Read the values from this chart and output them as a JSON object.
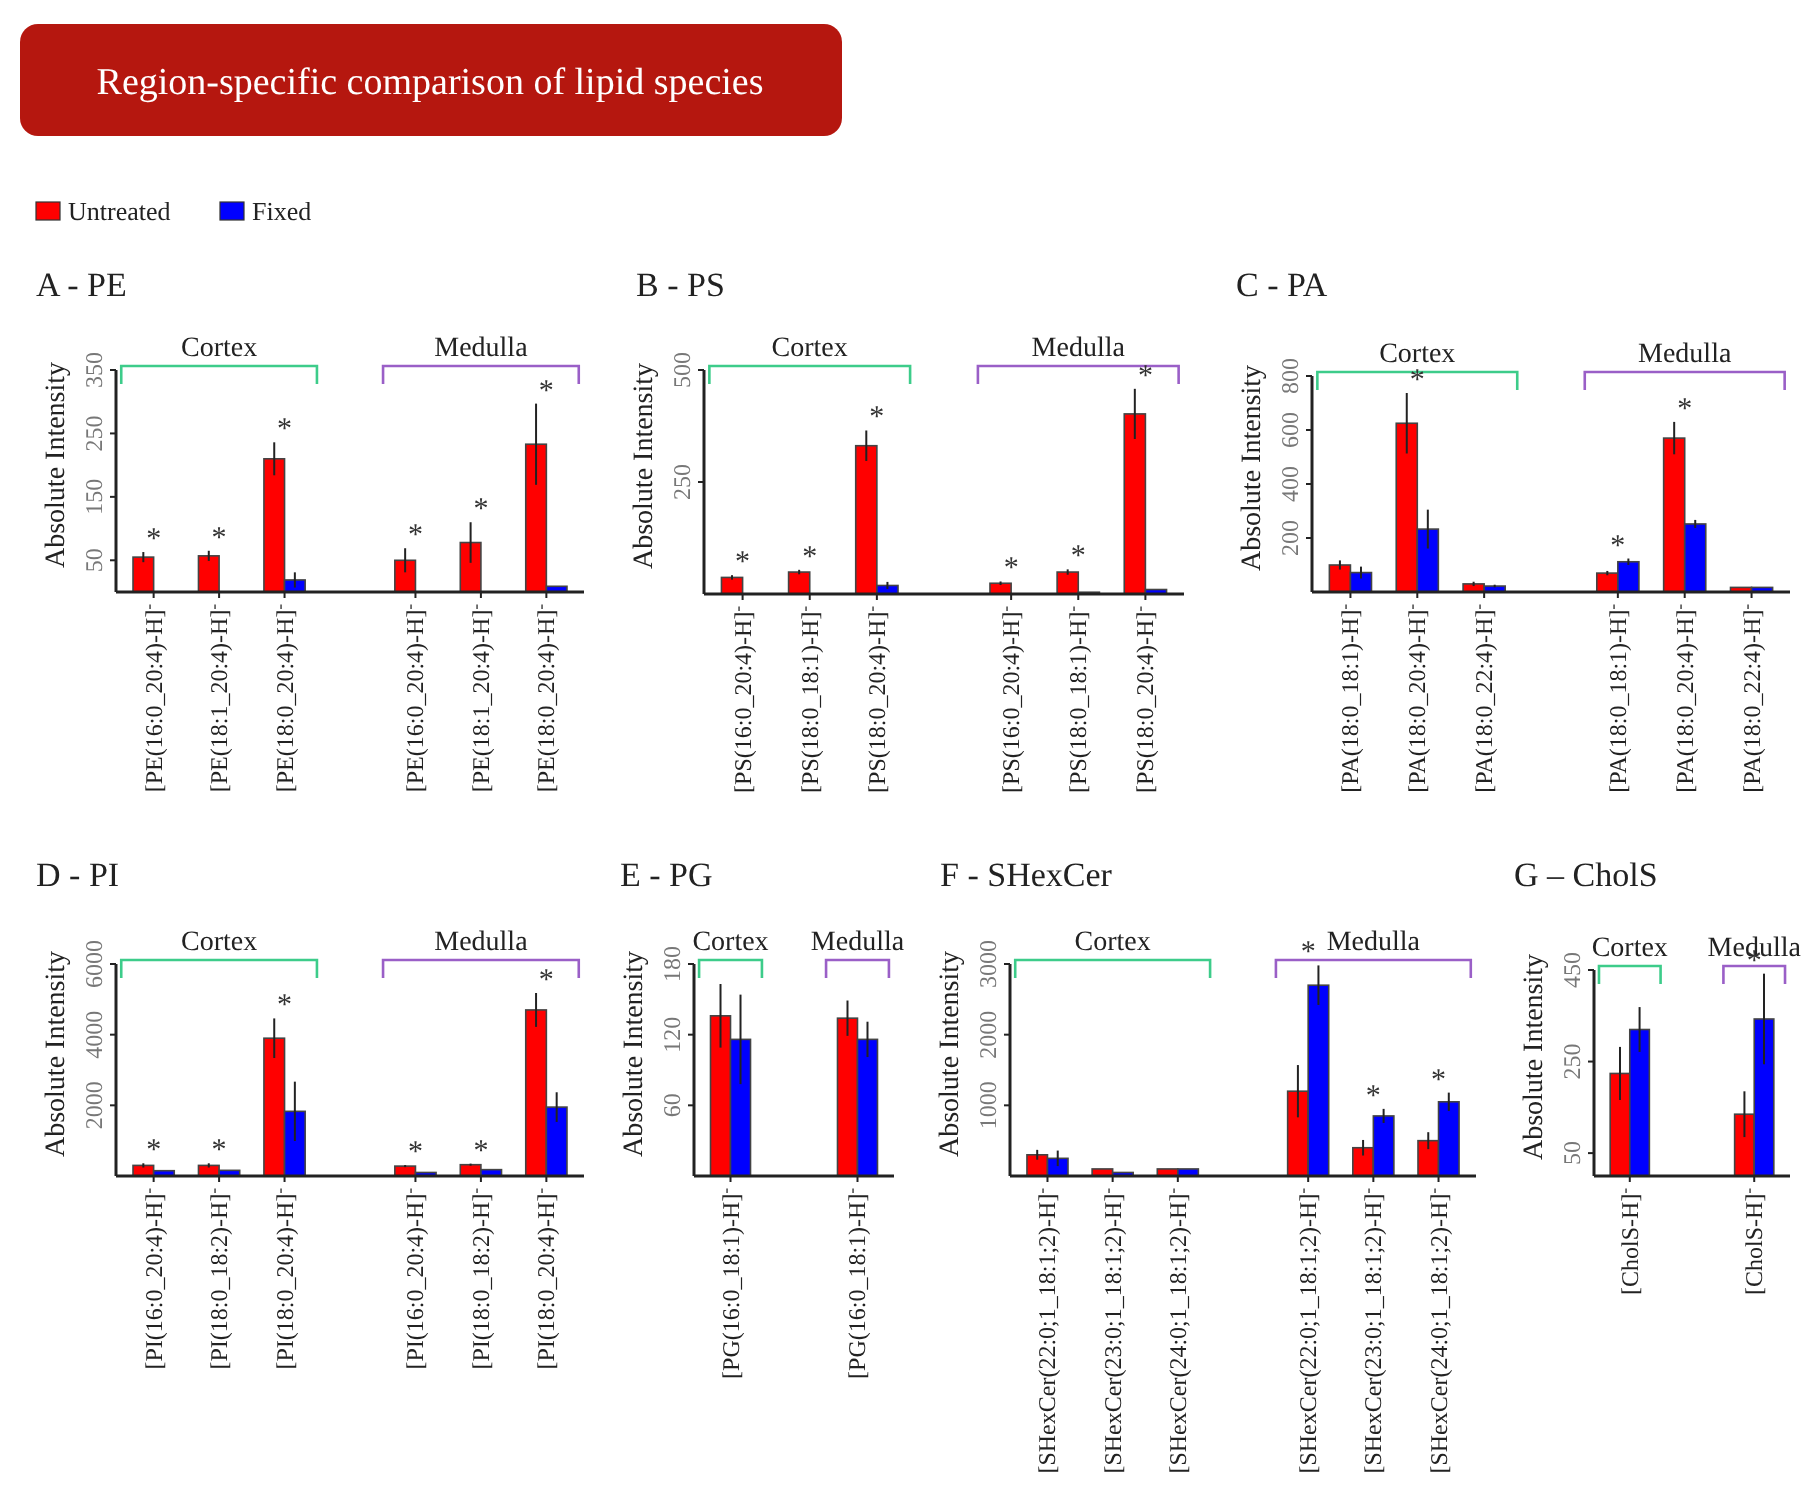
{
  "chart_data": [
    {
      "type": "other",
      "title": "Region-specific comparison of lipid species"
    },
    {
      "type": "bar",
      "title": "A - PE",
      "ylabel": "Absolute Intensity",
      "categories": [
        "[PE(16:0_20:4)-H]$^{-}$",
        "[PE(18:1_20:4)-H]$^{-}$",
        "[PE(18:0_20:4)-H]$^{-}$",
        null,
        "[PE(16:0_20:4)-H]$^{-}$",
        "[PE(18:1_20:4)-H]$^{-}$",
        "[PE(18:0_20:4)-H]$^{-}$"
      ],
      "ylim": [
        0,
        350
      ],
      "yticks": [
        50,
        150,
        250,
        350
      ],
      "legend": "top left",
      "annotations": [
        "Cortex",
        "Medulla"
      ],
      "series": [
        {
          "name": "Untreated",
          "color": "#ff0000",
          "values": [
            55,
            57,
            210,
            null,
            50,
            78,
            233
          ],
          "errors": [
            8,
            8,
            26,
            null,
            19,
            32,
            64
          ],
          "value_labels": [
            "*",
            "*",
            "*",
            null,
            "*",
            "*",
            "*"
          ]
        },
        {
          "name": "Fixed",
          "color": "#0000ff",
          "values": [
            null,
            null,
            19,
            null,
            null,
            null,
            9
          ],
          "errors": [
            null,
            null,
            12,
            null,
            null,
            null,
            null
          ]
        }
      ]
    },
    {
      "type": "bar",
      "title": "B - PS",
      "ylabel": "Absolute Intensity",
      "categories": [
        "[PS(16:0_20:4)-H]$^{-}$",
        "[PS(18:0_18:1)-H]$^{-}$",
        "[PS(18:0_20:4)-H]$^{-}$",
        null,
        "[PS(16:0_20:4)-H]$^{-}$",
        "[PS(18:0_18:1)-H]$^{-}$",
        "[PS(18:0_20:4)-H]$^{-}$"
      ],
      "ylim": [
        0,
        500
      ],
      "yticks": [
        250,
        500
      ],
      "annotations": [
        "Cortex",
        "Medulla"
      ],
      "series": [
        {
          "color": "#ff0000",
          "values": [
            37,
            49,
            331,
            null,
            24,
            49,
            402
          ],
          "errors": [
            5,
            5,
            34,
            null,
            4,
            6,
            56
          ],
          "value_labels": [
            "*",
            "*",
            "*",
            null,
            "*",
            "*",
            "*"
          ]
        },
        {
          "color": "#0000ff",
          "values": [
            null,
            null,
            19,
            null,
            null,
            4,
            10
          ],
          "errors": [
            null,
            null,
            8,
            null,
            null,
            null,
            null
          ]
        }
      ]
    },
    {
      "type": "bar",
      "title": "C - PA",
      "ylabel": "Absolute Intensity",
      "categories": [
        "[PA(18:0_18:1)-H]$^{-}$",
        "[PA(18:0_20:4)-H]$^{-}$",
        "[PA(18:0_22:4)-H]$^{-}$",
        null,
        "[PA(18:0_18:1)-H]$^{-}$",
        "[PA(18:0_20:4)-H]$^{-}$",
        "[PA(18:0_22:4)-H]$^{-}$"
      ],
      "ylim": [
        0,
        800
      ],
      "yticks": [
        200,
        400,
        600,
        800
      ],
      "annotations": [
        "Cortex",
        "Medulla"
      ],
      "series": [
        {
          "color": "#ff0000",
          "values": [
            100,
            625,
            30,
            null,
            70,
            570,
            17
          ],
          "errors": [
            17,
            112,
            8,
            null,
            8,
            60,
            null
          ],
          "value_labels": [
            null,
            "*",
            null,
            null,
            null,
            "*",
            null
          ]
        },
        {
          "color": "#0000ff",
          "values": [
            72,
            233,
            22,
            null,
            112,
            252,
            17
          ],
          "errors": [
            22,
            72,
            5,
            null,
            12,
            15,
            null
          ],
          "value_labels": [
            null,
            null,
            null,
            null,
            "*",
            null,
            null
          ]
        }
      ]
    },
    {
      "type": "bar",
      "title": "D - PI",
      "ylabel": "Absolute Intensity",
      "categories": [
        "[PI(16:0_20:4)-H]$^{-}$",
        "[PI(18:0_18:2)-H]$^{-}$",
        "[PI(18:0_20:4)-H]$^{-}$",
        null,
        "[PI(16:0_20:4)-H]$^{-}$",
        "[PI(18:0_18:2)-H]$^{-}$",
        "[PI(18:0_20:4)-H]$^{-}$"
      ],
      "ylim": [
        0,
        6000
      ],
      "yticks": [
        2000,
        4000,
        6000
      ],
      "annotations": [
        "Cortex",
        "Medulla"
      ],
      "series": [
        {
          "color": "#ff0000",
          "values": [
            300,
            300,
            3900,
            null,
            280,
            320,
            4700
          ],
          "errors": [
            60,
            60,
            560,
            null,
            30,
            30,
            480
          ],
          "value_labels": [
            "*",
            "*",
            "*",
            null,
            "*",
            "*",
            "*"
          ]
        },
        {
          "color": "#0000ff",
          "values": [
            150,
            160,
            1830,
            null,
            100,
            180,
            1950
          ],
          "errors": [
            null,
            null,
            840,
            null,
            null,
            null,
            420
          ]
        }
      ]
    },
    {
      "type": "bar",
      "title": "E - PG",
      "ylabel": "Absolute Intensity",
      "categories": [
        "[PG(16:0_18:1)-H]$^{-}$",
        null,
        "[PG(16:0_18:1)-H]$^{-}$"
      ],
      "ylim": [
        0,
        180
      ],
      "yticks": [
        60,
        120,
        180
      ],
      "annotations": [
        "Cortex",
        "Medulla"
      ],
      "series": [
        {
          "color": "#ff0000",
          "values": [
            136,
            null,
            134
          ],
          "errors": [
            27,
            null,
            15
          ]
        },
        {
          "color": "#0000ff",
          "values": [
            116,
            null,
            116
          ],
          "errors": [
            38,
            null,
            15
          ]
        }
      ]
    },
    {
      "type": "bar",
      "title": "F - SHexCer",
      "ylabel": "Absolute Intensity",
      "categories": [
        "[SHexCer(22:0;1_18:1;2)-H]$^{-}$",
        "[SHexCer(23:0;1_18:1;2)-H]$^{-}$",
        "[SHexCer(24:0;1_18:1;2)-H]$^{-}$",
        null,
        "[SHexCer(22:0;1_18:1;2)-H]$^{-}$",
        "[SHexCer(23:0;1_18:1;2)-H]$^{-}$",
        "[SHexCer(24:0;1_18:1;2)-H]$^{-}$"
      ],
      "ylim": [
        0,
        3000
      ],
      "yticks": [
        1000,
        2000,
        3000
      ],
      "annotations": [
        "Cortex",
        "Medulla"
      ],
      "series": [
        {
          "color": "#ff0000",
          "values": [
            300,
            100,
            100,
            null,
            1200,
            400,
            500
          ],
          "errors": [
            70,
            null,
            null,
            null,
            370,
            110,
            120
          ]
        },
        {
          "color": "#0000ff",
          "values": [
            250,
            50,
            100,
            null,
            2700,
            850,
            1050
          ],
          "errors": [
            110,
            null,
            null,
            null,
            280,
            100,
            130
          ],
          "value_labels": [
            null,
            null,
            null,
            null,
            "*",
            "*",
            "*"
          ]
        }
      ]
    },
    {
      "type": "bar",
      "title": "G – CholS",
      "ylabel": "Absolute Intensity",
      "categories": [
        "[CholS-H]$^{-}$",
        null,
        "[CholS-H]$^{-}$"
      ],
      "ylim": [
        0,
        450
      ],
      "yticks": [
        50,
        250,
        450
      ],
      "annotations": [
        "Cortex",
        "Medulla"
      ],
      "series": [
        {
          "color": "#ff0000",
          "values": [
            224,
            null,
            135
          ],
          "errors": [
            58,
            null,
            50
          ]
        },
        {
          "color": "#0000ff",
          "values": [
            320,
            null,
            343
          ],
          "errors": [
            49,
            null,
            99
          ],
          "value_labels": [
            null,
            null,
            "*"
          ]
        }
      ]
    }
  ]
}
